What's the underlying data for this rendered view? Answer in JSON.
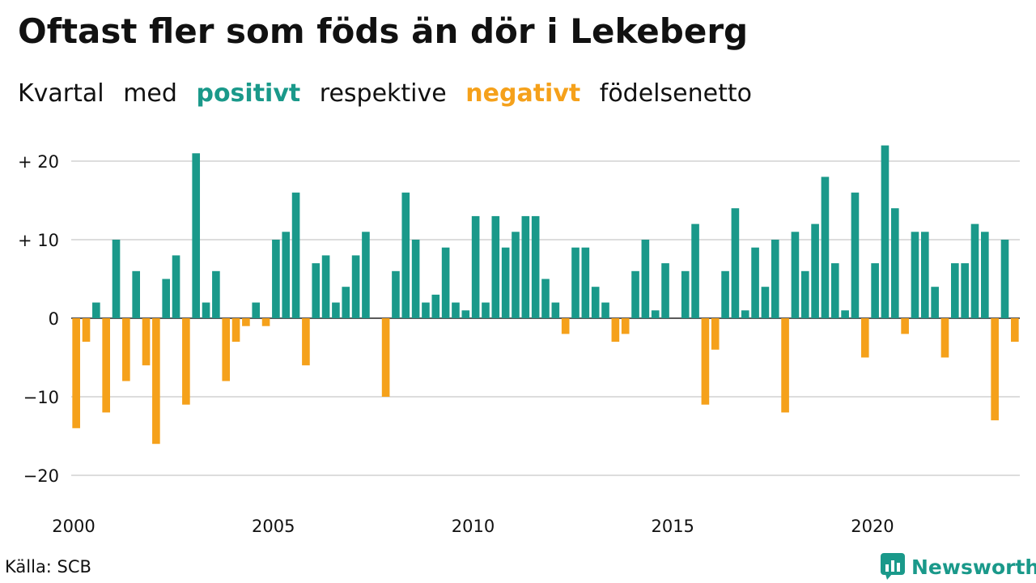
{
  "header": {
    "title": "Oftast fler som föds än dör i Lekeberg",
    "subtitle": {
      "part1": "Kvartal",
      "part2": "med",
      "positive": "positivt",
      "part3": "respektive",
      "negative": "negativt",
      "part4": "födelsenetto"
    }
  },
  "colors": {
    "positive": "#1a998a",
    "negative": "#f5a11b",
    "grid": "#dddddd"
  },
  "footer": {
    "source": "Källa: SCB",
    "brand": "Newsworthy",
    "logo_icon": "bar-chart-speech-bubble-icon"
  },
  "chart_data": {
    "type": "bar",
    "x_start": "2000 Q1",
    "ylim": [
      -23,
      23
    ],
    "y_ticks": [
      {
        "value": 20,
        "label": "+ 20"
      },
      {
        "value": 10,
        "label": "+ 10"
      },
      {
        "value": 0,
        "label": "0"
      },
      {
        "value": -10,
        "label": "−10"
      },
      {
        "value": -20,
        "label": "−20"
      }
    ],
    "x_ticks": [
      "2000",
      "2005",
      "2010",
      "2015",
      "2020"
    ],
    "values": [
      -14,
      -3,
      2,
      -12,
      10,
      -8,
      6,
      -6,
      -16,
      5,
      8,
      -11,
      21,
      2,
      6,
      -8,
      -3,
      -1,
      2,
      -1,
      10,
      11,
      16,
      -6,
      7,
      8,
      2,
      4,
      8,
      11,
      0,
      -10,
      6,
      16,
      10,
      2,
      3,
      9,
      2,
      1,
      13,
      2,
      13,
      9,
      11,
      13,
      13,
      5,
      2,
      -2,
      9,
      9,
      4,
      2,
      -3,
      -2,
      6,
      10,
      1,
      7,
      0,
      6,
      12,
      -11,
      -4,
      6,
      14,
      1,
      9,
      4,
      10,
      -12,
      11,
      6,
      12,
      18,
      7,
      1,
      16,
      -5,
      7,
      22,
      14,
      -2,
      11,
      11,
      4,
      -5,
      7,
      7,
      12,
      11,
      -13,
      10,
      -3
    ]
  }
}
